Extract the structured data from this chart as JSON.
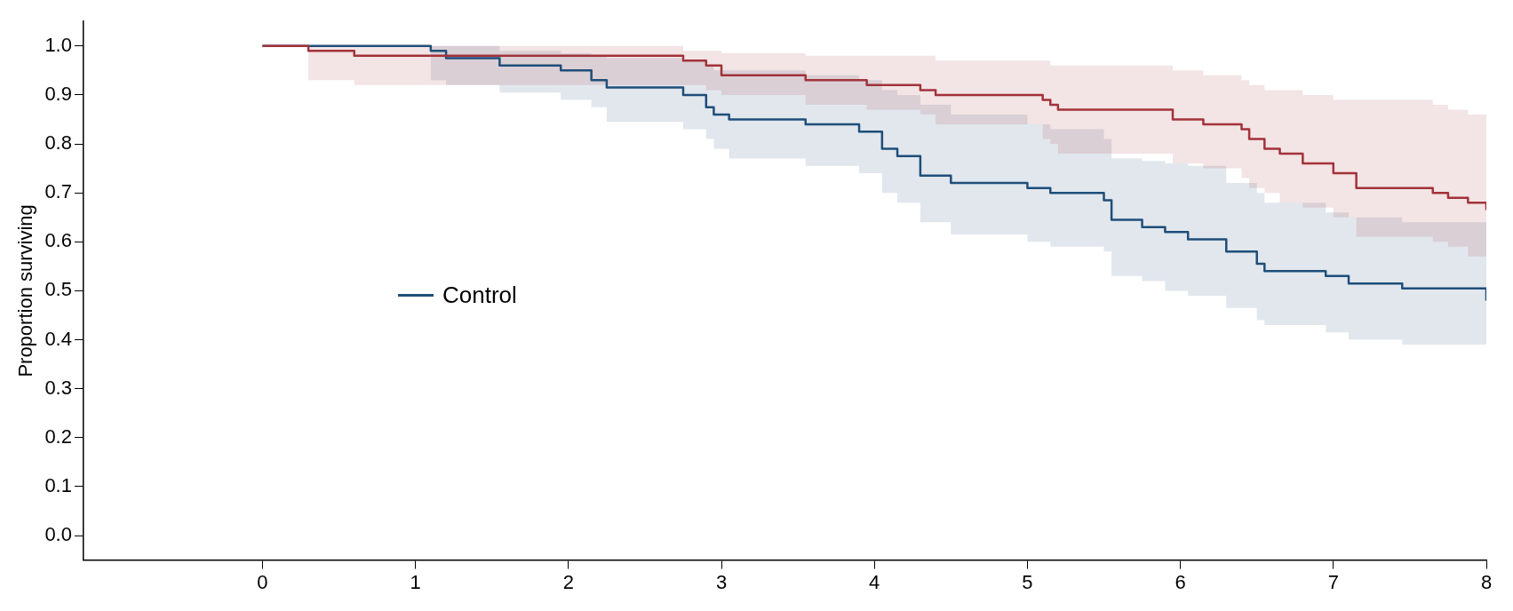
{
  "chart_data": {
    "type": "step",
    "ylabel": "Proportion surviving",
    "xlim": [
      -1.17,
      8
    ],
    "ylim": [
      -0.05,
      1.05
    ],
    "xticks": [
      0,
      1,
      2,
      3,
      4,
      5,
      6,
      7,
      8
    ],
    "yticks": [
      {
        "value": 0,
        "label": "0.0"
      },
      {
        "value": 0.1,
        "label": "0.1"
      },
      {
        "value": 0.2,
        "label": "0.2"
      },
      {
        "value": 0.3,
        "label": "0.3"
      },
      {
        "value": 0.4,
        "label": "0.4"
      },
      {
        "value": 0.5,
        "label": "0.5"
      },
      {
        "value": 0.6,
        "label": "0.6"
      },
      {
        "value": 0.7,
        "label": "0.7"
      },
      {
        "value": 0.8,
        "label": "0.8"
      },
      {
        "value": 0.9,
        "label": "0.9"
      },
      {
        "value": 1,
        "label": "1.0"
      }
    ],
    "grid": false,
    "legend": "center left",
    "marker": "none",
    "line_style": "solid",
    "series": [
      {
        "color": "#a2323a",
        "x": [
          0,
          0.3,
          0.6,
          2.75,
          2.9,
          3.0,
          3.55,
          3.95,
          4.3,
          4.4,
          5.1,
          5.15,
          5.2,
          5.95,
          6.15,
          6.4,
          6.45,
          6.55,
          6.65,
          6.8,
          7.0,
          7.15,
          7.65,
          7.75,
          7.88,
          8.0
        ],
        "values": [
          1.0,
          0.99,
          0.98,
          0.97,
          0.96,
          0.94,
          0.93,
          0.92,
          0.91,
          0.9,
          0.89,
          0.88,
          0.87,
          0.85,
          0.84,
          0.83,
          0.81,
          0.79,
          0.78,
          0.76,
          0.74,
          0.71,
          0.7,
          0.69,
          0.68,
          0.665
        ],
        "lower": [
          1.0,
          0.93,
          0.92,
          0.92,
          0.91,
          0.9,
          0.88,
          0.87,
          0.86,
          0.84,
          0.81,
          0.8,
          0.78,
          0.76,
          0.75,
          0.73,
          0.71,
          0.7,
          0.68,
          0.67,
          0.65,
          0.61,
          0.6,
          0.59,
          0.57,
          0.55
        ],
        "upper": [
          1.0,
          1.0,
          1.0,
          0.99,
          0.99,
          0.985,
          0.98,
          0.98,
          0.98,
          0.97,
          0.97,
          0.96,
          0.96,
          0.95,
          0.94,
          0.93,
          0.92,
          0.91,
          0.91,
          0.9,
          0.89,
          0.89,
          0.88,
          0.87,
          0.86,
          0.75
        ]
      },
      {
        "name": "Control",
        "color": "#1f4e79",
        "x": [
          0,
          1.1,
          1.2,
          1.55,
          1.95,
          2.15,
          2.25,
          2.75,
          2.9,
          2.95,
          3.05,
          3.55,
          3.9,
          4.05,
          4.15,
          4.3,
          4.5,
          5.0,
          5.15,
          5.5,
          5.55,
          5.75,
          5.9,
          6.05,
          6.3,
          6.5,
          6.55,
          6.95,
          7.1,
          7.45,
          8.0
        ],
        "values": [
          1.0,
          0.99,
          0.975,
          0.96,
          0.95,
          0.93,
          0.915,
          0.9,
          0.875,
          0.86,
          0.85,
          0.84,
          0.825,
          0.79,
          0.775,
          0.735,
          0.72,
          0.71,
          0.7,
          0.685,
          0.645,
          0.63,
          0.62,
          0.605,
          0.58,
          0.555,
          0.54,
          0.53,
          0.515,
          0.505,
          0.48
        ],
        "lower": [
          1.0,
          0.93,
          0.92,
          0.905,
          0.89,
          0.875,
          0.845,
          0.83,
          0.81,
          0.79,
          0.77,
          0.755,
          0.74,
          0.7,
          0.68,
          0.64,
          0.615,
          0.6,
          0.59,
          0.58,
          0.53,
          0.52,
          0.5,
          0.49,
          0.465,
          0.44,
          0.43,
          0.415,
          0.4,
          0.39,
          0.36
        ],
        "upper": [
          1.0,
          1.0,
          1.0,
          0.99,
          0.985,
          0.98,
          0.975,
          0.97,
          0.96,
          0.95,
          0.95,
          0.94,
          0.93,
          0.91,
          0.9,
          0.88,
          0.86,
          0.84,
          0.83,
          0.81,
          0.77,
          0.765,
          0.76,
          0.755,
          0.72,
          0.7,
          0.68,
          0.66,
          0.65,
          0.64,
          0.62
        ]
      }
    ]
  }
}
